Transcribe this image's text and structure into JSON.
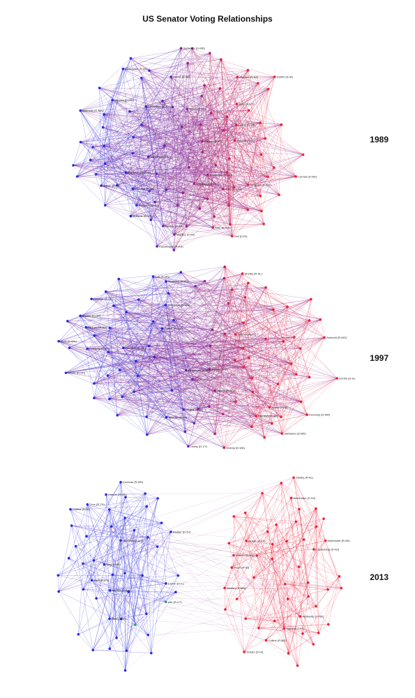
{
  "title": "US Senator Voting Relationships",
  "colors": {
    "democrat": "#2a2adf",
    "republican": "#ec1f3a",
    "independent": "#2a9a7a"
  },
  "panels": [
    {
      "year": "1989",
      "labels": [
        "Garn (R-UT)",
        "Jeffords (R-VT)",
        "Moynihan (D-NY)",
        "Kennedy (D-MA)",
        "Kassebaum (R-KS)",
        "McCain (R-AZ)",
        "Murkowski (R-AK)",
        "Pell (D-RI)",
        "McConnell (R-KY)",
        "McClure (R-ID)",
        "Bradley (D-NJ)",
        "Simpson (R-WY)",
        "Wallop (R-WY)",
        "Bumpers (D-AR)",
        "Leahy (D-VT)",
        "Mitchell (D-ME)",
        "Helms (R-NC)",
        "Sarbanes (D-MD)",
        "Symms (R-ID)",
        "Mikulski (D-MD)",
        "Simon (D-IL)",
        "Armstrong (R-CO)",
        "Biden (D-DE)",
        "Byrd (D-WV)",
        "Harkin (D-IA)",
        "Conrad (D-ND)",
        "Humphrey (R-NH)",
        "Warner (R-VA)",
        "Dole (R-KS)"
      ]
    },
    {
      "year": "1997",
      "labels": [
        "Byrd (D-WV)",
        "Hollings (D-SC)",
        "Helms (R-NC)",
        "Bingaman (D-NM)",
        "McCain (R-AZ)",
        "Wyden (D-OR)",
        "Gramm (R-TX)",
        "Mikulski (D-MD)",
        "Ashcroft (R-MO)",
        "Wellstone (D-MN)",
        "Kyl (R-AZ)",
        "Sarbanes (D-MD)",
        "Faircloth (R-NC)",
        "Harkin (D-IA)",
        "Sessions (R-AL)",
        "Durbin (D-IL)",
        "Inhofe (R-OK)",
        "Kennedy (D-MA)",
        "Lott (R-MS)",
        "Leahy (D-VT)",
        "Akaka (D-HI)",
        "Murray (D-WA)",
        "Feingold (D-WI)",
        "Specter (R-PA)",
        "Shelby (R-AL)",
        "Chafee (R-RI)",
        "Grams (R-MN)"
      ]
    },
    {
      "year": "2013",
      "labels": [
        "Chiesa (R-NJ)",
        "Rubio (R-FL)",
        "Cochran (R-MS)",
        "Booker (D-NJ)",
        "Cruz (R-TX)",
        "Lee (R-UT)",
        "Durbin (D-IL)",
        "Paul (R-KY)",
        "King (I-ME)",
        "Manchin (D-WV)",
        "Coburn (R-OK)",
        "Murray (D-WA)",
        "Risch (R-ID)",
        "Warren (D-MA)",
        "Collins (R-ME)",
        "Murkowski (R-AK)",
        "Sanders (I-VT)",
        "Lautenberg (D-NJ)",
        "Markey (D-MA)",
        "Moran (R-KS)",
        "Shelby (R-AL)",
        "Menendez (D-NJ)",
        "Heitkamp (D-ND)",
        "Schatz (D-HI)"
      ]
    }
  ]
}
